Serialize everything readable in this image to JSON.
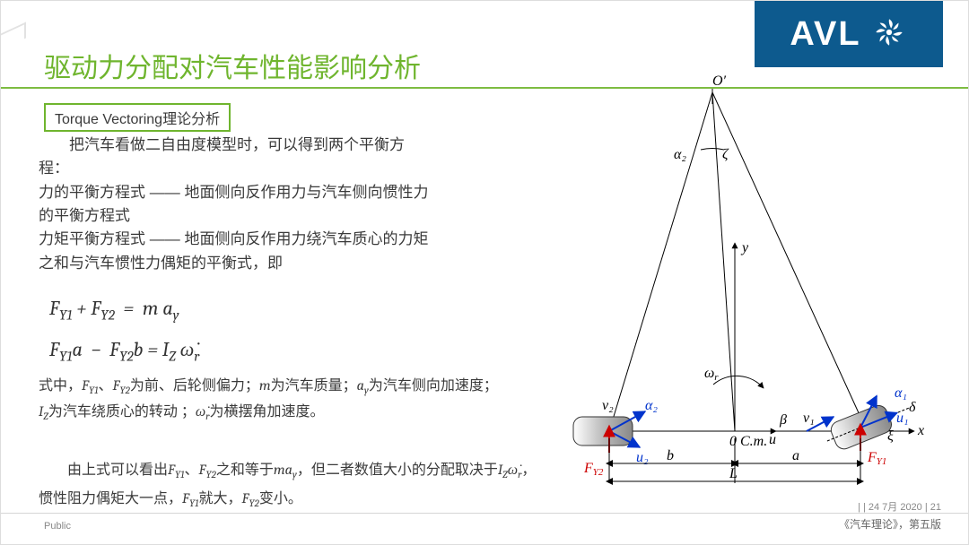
{
  "colors": {
    "brand": "#0d5a8e",
    "title": "#6fb52e",
    "accent": "#6fb52e",
    "body": "#3a3a3a"
  },
  "logo": {
    "text": "AVL"
  },
  "title": "驱动力分配对汽车性能影响分析",
  "subtitle": "Torque Vectoring理论分析",
  "body_p1": "把汽车看做二自由度模型时，可以得到两个平衡方程：",
  "body_p2": "力的平衡方程式 —— 地面侧向反作用力与汽车侧向惯性力的平衡方程式",
  "body_p3": "力矩平衡方程式 —— 地面侧向反作用力绕汽车质心的力矩之和与汽车惯性力偶矩的平衡式，即",
  "eq1_html": "F<sub>Y1</sub>&nbsp;+&nbsp;F<sub>Y2</sub>&nbsp;&nbsp;=&nbsp;&nbsp;m a<sub>y</sub>",
  "eq2_html": "F<sub>Y1</sub>a&nbsp;&nbsp;−&nbsp;&nbsp;F<sub>Y2</sub>b&nbsp;=&nbsp;I<sub>Z</sub> ω̇<sub>r</sub>",
  "explain1_html": "式中，<span class='mv'>F<sub>Y1</sub></span>、<span class='mv'>F<sub>Y2</sub></span>为前、后轮侧偏力；<span class='mv'>m</span>为汽车质量；<span class='mv'>a<sub>y</sub></span>为汽车侧向加速度；<span class='mv'>I<sub>Z</sub></span>为汽车绕质心的转动 ；<span class='mv'>ω̇<sub>r</sub></span>为横摆角加速度。",
  "explain2_html": "　　由上式可以看出<span class='mv'>F<sub>Y1</sub></span>、<span class='mv'>F<sub>Y2</sub></span>之和等于<span class='mv'>ma<sub>y</sub></span>，但二者数值大小的分配取决于<span class='mv'>I<sub>Z</sub>ω̇<sub>r</sub></span>，惯性阻力偶矩大一点，<span class='mv'>F<sub>Y1</sub></span>就大，<span class='mv'>F<sub>Y2</sub></span>变小。",
  "diagram": {
    "O_label": "O'",
    "center_label": "C.m.",
    "origin_label": "0",
    "x_label": "x",
    "y_label": "y",
    "u_label": "u",
    "L_label": "L",
    "a_label": "a",
    "b_label": "b",
    "Fy1_label": "F_{Y1}",
    "Fy2_label": "F_{Y2}",
    "v1_label": "v₁",
    "v2_label": "v₂",
    "u1_label": "u₁",
    "u2_label": "u₂",
    "alpha1_label": "α₁",
    "alpha2_label": "α₂",
    "beta_label": "β",
    "zeta_label": "ζ",
    "xi_label": "ξ",
    "delta_label": "δ",
    "omega_label": "ω_r"
  },
  "citation": "《汽车理论》，第五版",
  "footer": {
    "left": "Public",
    "right": "|  | 24 7月 2020 | 21"
  }
}
